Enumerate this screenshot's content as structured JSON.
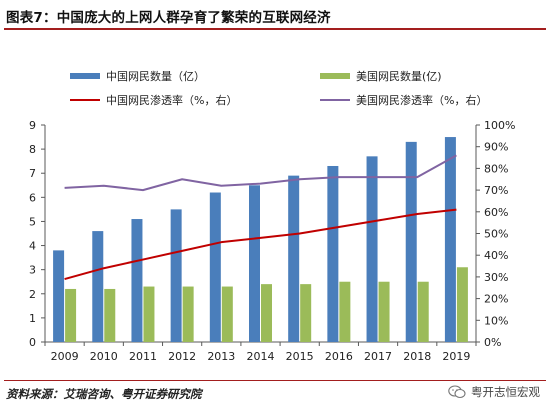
{
  "figure": {
    "title": "图表7：中国庞大的上网人群孕育了繁荣的互联网经济",
    "source": "资料来源：艾瑞咨询、粤开证券研究院",
    "watermark": "粤开志恒宏观"
  },
  "colors": {
    "china_bar": "#4a7ebb",
    "us_bar": "#9bbb59",
    "china_line": "#c00000",
    "us_line": "#8064a2",
    "axis": "#595959",
    "title_rule": "#a31e1e"
  },
  "chart_data": {
    "type": "bar+line",
    "categories": [
      "2009",
      "2010",
      "2011",
      "2012",
      "2013",
      "2014",
      "2015",
      "2016",
      "2017",
      "2018",
      "2019"
    ],
    "left_axis": {
      "ylim": [
        0,
        9
      ],
      "ticks": [
        "0",
        "1",
        "2",
        "3",
        "4",
        "5",
        "6",
        "7",
        "8",
        "9"
      ]
    },
    "right_axis": {
      "ylim": [
        0,
        100
      ],
      "ticks": [
        "0%",
        "10%",
        "20%",
        "30%",
        "40%",
        "50%",
        "60%",
        "70%",
        "80%",
        "90%",
        "100%"
      ]
    },
    "grid": false,
    "legend_position": "top",
    "bars": [
      {
        "name": "中国网民数量（亿）",
        "color_key": "china_bar",
        "values": [
          3.8,
          4.6,
          5.1,
          5.5,
          6.2,
          6.5,
          6.9,
          7.3,
          7.7,
          8.3,
          8.5
        ]
      },
      {
        "name": "美国网民数量(亿)",
        "color_key": "us_bar",
        "values": [
          2.2,
          2.2,
          2.3,
          2.3,
          2.3,
          2.4,
          2.4,
          2.5,
          2.5,
          2.5,
          3.1
        ]
      }
    ],
    "lines": [
      {
        "name": "中国网民渗透率（%，右）",
        "color_key": "china_line",
        "axis": "right",
        "values": [
          29,
          34,
          38,
          42,
          46,
          48,
          50,
          53,
          56,
          59,
          61
        ]
      },
      {
        "name": "美国网民渗透率（%，右）",
        "color_key": "us_line",
        "axis": "right",
        "values": [
          71,
          72,
          70,
          75,
          72,
          73,
          75,
          76,
          76,
          76,
          86
        ]
      }
    ]
  }
}
